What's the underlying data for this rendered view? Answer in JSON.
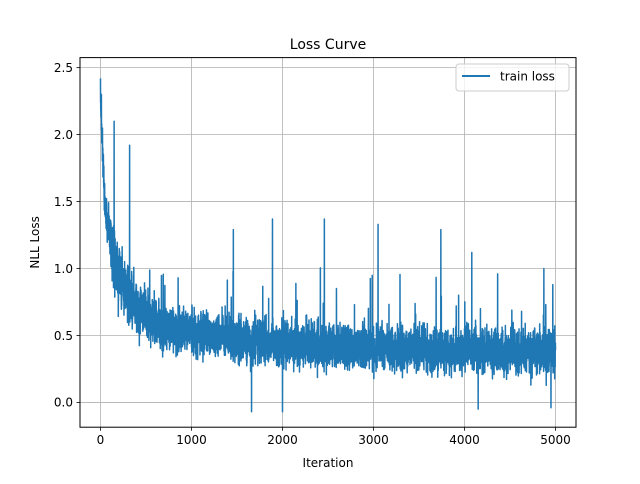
{
  "chart_data": {
    "type": "line",
    "title": "Loss Curve",
    "xlabel": "Iteration",
    "ylabel": "NLL Loss",
    "xlim": [
      -225,
      5225
    ],
    "ylim": [
      -0.185,
      2.575
    ],
    "x_ticks": [
      0,
      1000,
      2000,
      3000,
      4000,
      5000
    ],
    "y_ticks": [
      0.0,
      0.5,
      1.0,
      1.5,
      2.0,
      2.5
    ],
    "x_tick_labels": [
      "0",
      "1000",
      "2000",
      "3000",
      "4000",
      "5000"
    ],
    "y_tick_labels": [
      "0.0",
      "0.5",
      "1.0",
      "1.5",
      "2.0",
      "2.5"
    ],
    "grid": true,
    "legend_position": "top-right",
    "series": [
      {
        "name": "train loss",
        "color": "#1f77b4",
        "x_range": [
          0,
          5000
        ],
        "num_points": 5001,
        "approx_envelope": {
          "x": [
            0,
            50,
            100,
            150,
            200,
            300,
            400,
            500,
            700,
            1000,
            1500,
            2000,
            2500,
            3000,
            3500,
            4000,
            4500,
            5000
          ],
          "mean": [
            2.25,
            1.45,
            1.25,
            1.05,
            0.95,
            0.82,
            0.72,
            0.64,
            0.56,
            0.52,
            0.47,
            0.44,
            0.42,
            0.41,
            0.4,
            0.39,
            0.38,
            0.38
          ],
          "spread": [
            0.12,
            0.22,
            0.28,
            0.3,
            0.3,
            0.27,
            0.25,
            0.23,
            0.22,
            0.21,
            0.21,
            0.21,
            0.21,
            0.21,
            0.21,
            0.21,
            0.21,
            0.21
          ]
        },
        "notable_spikes": [
          {
            "x": 0,
            "y": 2.42
          },
          {
            "x": 10,
            "y": 2.3
          },
          {
            "x": 150,
            "y": 2.1
          },
          {
            "x": 320,
            "y": 1.92
          },
          {
            "x": 1460,
            "y": 1.29
          },
          {
            "x": 1890,
            "y": 1.37
          },
          {
            "x": 2460,
            "y": 1.37
          },
          {
            "x": 3050,
            "y": 1.33
          },
          {
            "x": 3740,
            "y": 1.29
          },
          {
            "x": 4080,
            "y": 1.12
          },
          {
            "x": 4970,
            "y": 0.88
          }
        ],
        "notable_dips": [
          {
            "x": 1660,
            "y": -0.07
          },
          {
            "x": 2000,
            "y": -0.07
          },
          {
            "x": 4150,
            "y": -0.05
          },
          {
            "x": 4950,
            "y": -0.04
          }
        ]
      }
    ]
  }
}
